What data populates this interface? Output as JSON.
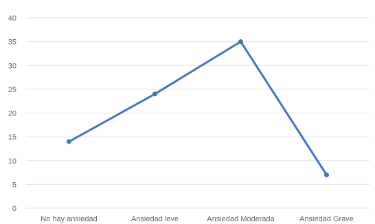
{
  "chart_data": {
    "type": "line",
    "title": "",
    "xlabel": "",
    "ylabel": "",
    "categories": [
      "No hay ansiedad",
      "Ansiedad leve",
      "Ansiedad Moderada",
      "Ansiedad Grave"
    ],
    "series": [
      {
        "values": [
          14,
          24,
          35,
          7
        ],
        "color": "#4472c4"
      }
    ],
    "ylim": [
      0,
      40
    ],
    "yticks": [
      0,
      5,
      10,
      15,
      20,
      25,
      30,
      35,
      40
    ],
    "grid": true,
    "legend": "none"
  }
}
